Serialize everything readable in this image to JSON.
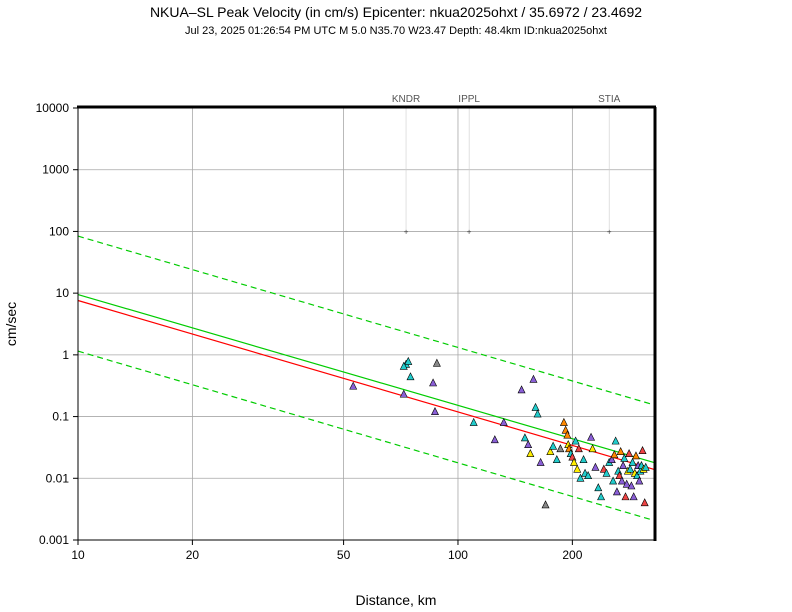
{
  "chart_data": {
    "type": "scatter",
    "title": "NKUA–SL Peak Velocity (in cm/s) Epicenter: nkua2025ohxt / 35.6972 / 23.4692",
    "subtitle": "Jul 23, 2025 01:26:54 PM UTC   M 5.0   N35.70 W23.47   Depth: 48.4km   ID:nkua2025ohxt",
    "xlabel": "Distance, km",
    "ylabel": "cm/sec",
    "xscale": "log",
    "yscale": "log",
    "xlim": [
      10,
      330
    ],
    "ylim": [
      0.001,
      10000
    ],
    "grid": true,
    "x_ticks": [
      10,
      20,
      50,
      100,
      200
    ],
    "x_tick_labels": [
      "10",
      "20",
      "50",
      "100",
      "200"
    ],
    "y_ticks": [
      0.001,
      0.01,
      0.1,
      1,
      10,
      100,
      1000,
      10000
    ],
    "y_tick_labels": [
      "0.001",
      "0.01",
      "0.1",
      "1",
      "10",
      "100",
      "1000",
      "10000"
    ],
    "stations": [
      {
        "name": "KNDR",
        "x": 73
      },
      {
        "name": "IPPL",
        "x": 107
      },
      {
        "name": "STIA",
        "x": 250
      }
    ],
    "curves": [
      {
        "name": "median",
        "color": "#ff0000",
        "style": "solid",
        "x": [
          10,
          330
        ],
        "y": [
          7.6,
          0.0138
        ]
      },
      {
        "name": "mean",
        "color": "#00cc00",
        "style": "solid",
        "x": [
          10,
          330
        ],
        "y": [
          9.5,
          0.0178
        ]
      },
      {
        "name": "upper",
        "color": "#00cc00",
        "style": "dashed",
        "x": [
          10,
          330
        ],
        "y": [
          84,
          0.153
        ]
      },
      {
        "name": "lower",
        "color": "#00cc00",
        "style": "dashed",
        "x": [
          10,
          330
        ],
        "y": [
          1.15,
          0.00205
        ]
      }
    ],
    "series": [
      {
        "name": "observed",
        "points": [
          {
            "x": 53,
            "y": 0.31,
            "c": "#8a5fd6"
          },
          {
            "x": 72,
            "y": 0.23,
            "c": "#8a5fd6"
          },
          {
            "x": 73,
            "y": 0.7,
            "c": "#22cccc"
          },
          {
            "x": 74,
            "y": 0.78,
            "c": "#22cccc"
          },
          {
            "x": 72,
            "y": 0.65,
            "c": "#22cccc"
          },
          {
            "x": 75,
            "y": 0.44,
            "c": "#22cccc"
          },
          {
            "x": 86,
            "y": 0.35,
            "c": "#8a5fd6"
          },
          {
            "x": 88,
            "y": 0.73,
            "c": "#888888"
          },
          {
            "x": 87,
            "y": 0.12,
            "c": "#8a5fd6"
          },
          {
            "x": 110,
            "y": 0.08,
            "c": "#22cccc"
          },
          {
            "x": 125,
            "y": 0.042,
            "c": "#8a5fd6"
          },
          {
            "x": 132,
            "y": 0.08,
            "c": "#8a5fd6"
          },
          {
            "x": 147,
            "y": 0.27,
            "c": "#8a5fd6"
          },
          {
            "x": 150,
            "y": 0.045,
            "c": "#22cccc"
          },
          {
            "x": 153,
            "y": 0.035,
            "c": "#8a5fd6"
          },
          {
            "x": 158,
            "y": 0.4,
            "c": "#8a5fd6"
          },
          {
            "x": 160,
            "y": 0.14,
            "c": "#22cccc"
          },
          {
            "x": 162,
            "y": 0.11,
            "c": "#22cccc"
          },
          {
            "x": 155,
            "y": 0.025,
            "c": "#ffee00"
          },
          {
            "x": 165,
            "y": 0.018,
            "c": "#8a5fd6"
          },
          {
            "x": 170,
            "y": 0.0037,
            "c": "#888888"
          },
          {
            "x": 175,
            "y": 0.027,
            "c": "#ffee00"
          },
          {
            "x": 178,
            "y": 0.033,
            "c": "#22cccc"
          },
          {
            "x": 182,
            "y": 0.02,
            "c": "#22cccc"
          },
          {
            "x": 186,
            "y": 0.03,
            "c": "#888888"
          },
          {
            "x": 190,
            "y": 0.08,
            "c": "#ff8800"
          },
          {
            "x": 192,
            "y": 0.06,
            "c": "#ff8800"
          },
          {
            "x": 194,
            "y": 0.05,
            "c": "#ff8800"
          },
          {
            "x": 195,
            "y": 0.035,
            "c": "#ffee00"
          },
          {
            "x": 196,
            "y": 0.03,
            "c": "#ff8800"
          },
          {
            "x": 198,
            "y": 0.025,
            "c": "#22cccc"
          },
          {
            "x": 200,
            "y": 0.022,
            "c": "#ee4444"
          },
          {
            "x": 202,
            "y": 0.018,
            "c": "#ffee00"
          },
          {
            "x": 204,
            "y": 0.04,
            "c": "#22cccc"
          },
          {
            "x": 206,
            "y": 0.014,
            "c": "#ffee00"
          },
          {
            "x": 208,
            "y": 0.03,
            "c": "#ee4444"
          },
          {
            "x": 210,
            "y": 0.01,
            "c": "#22cccc"
          },
          {
            "x": 214,
            "y": 0.02,
            "c": "#22cccc"
          },
          {
            "x": 216,
            "y": 0.012,
            "c": "#22cccc"
          },
          {
            "x": 220,
            "y": 0.011,
            "c": "#22cccc"
          },
          {
            "x": 224,
            "y": 0.046,
            "c": "#8a5fd6"
          },
          {
            "x": 226,
            "y": 0.03,
            "c": "#ffee00"
          },
          {
            "x": 230,
            "y": 0.015,
            "c": "#8a5fd6"
          },
          {
            "x": 234,
            "y": 0.007,
            "c": "#22cccc"
          },
          {
            "x": 238,
            "y": 0.005,
            "c": "#22cccc"
          },
          {
            "x": 242,
            "y": 0.014,
            "c": "#ee4444"
          },
          {
            "x": 246,
            "y": 0.012,
            "c": "#22cccc"
          },
          {
            "x": 250,
            "y": 0.018,
            "c": "#22cccc"
          },
          {
            "x": 254,
            "y": 0.02,
            "c": "#8a5fd6"
          },
          {
            "x": 256,
            "y": 0.009,
            "c": "#22cccc"
          },
          {
            "x": 258,
            "y": 0.024,
            "c": "#ff8800"
          },
          {
            "x": 260,
            "y": 0.04,
            "c": "#22cccc"
          },
          {
            "x": 262,
            "y": 0.006,
            "c": "#8a5fd6"
          },
          {
            "x": 264,
            "y": 0.013,
            "c": "#22cccc"
          },
          {
            "x": 266,
            "y": 0.011,
            "c": "#ee4444"
          },
          {
            "x": 268,
            "y": 0.027,
            "c": "#ff8800"
          },
          {
            "x": 270,
            "y": 0.009,
            "c": "#8a5fd6"
          },
          {
            "x": 272,
            "y": 0.016,
            "c": "#8a5fd6"
          },
          {
            "x": 274,
            "y": 0.021,
            "c": "#22cccc"
          },
          {
            "x": 276,
            "y": 0.005,
            "c": "#ee4444"
          },
          {
            "x": 278,
            "y": 0.008,
            "c": "#8a5fd6"
          },
          {
            "x": 280,
            "y": 0.013,
            "c": "#ffee00"
          },
          {
            "x": 282,
            "y": 0.025,
            "c": "#ee4444"
          },
          {
            "x": 284,
            "y": 0.014,
            "c": "#22cccc"
          },
          {
            "x": 286,
            "y": 0.0075,
            "c": "#8a5fd6"
          },
          {
            "x": 288,
            "y": 0.018,
            "c": "#22cccc"
          },
          {
            "x": 290,
            "y": 0.005,
            "c": "#8a5fd6"
          },
          {
            "x": 292,
            "y": 0.012,
            "c": "#ffee00"
          },
          {
            "x": 294,
            "y": 0.023,
            "c": "#ff8800"
          },
          {
            "x": 296,
            "y": 0.011,
            "c": "#22cccc"
          },
          {
            "x": 298,
            "y": 0.016,
            "c": "#8a5fd6"
          },
          {
            "x": 300,
            "y": 0.009,
            "c": "#8a5fd6"
          },
          {
            "x": 302,
            "y": 0.013,
            "c": "#22cccc"
          },
          {
            "x": 304,
            "y": 0.016,
            "c": "#22cccc"
          },
          {
            "x": 306,
            "y": 0.028,
            "c": "#ee4444"
          },
          {
            "x": 308,
            "y": 0.014,
            "c": "#ffee00"
          },
          {
            "x": 310,
            "y": 0.004,
            "c": "#ee4444"
          },
          {
            "x": 312,
            "y": 0.015,
            "c": "#22cccc"
          }
        ]
      }
    ]
  }
}
